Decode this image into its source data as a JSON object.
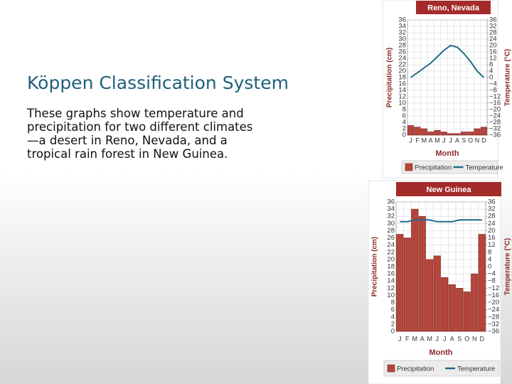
{
  "slide": {
    "title": "Köppen Classification System",
    "body": "These graphs show temperature and precipitation for two different climates—a desert in Reno, Nevada, and a tropical rain forest in New Guinea."
  },
  "chart_data": [
    {
      "type": "bar",
      "title": "Reno, Nevada",
      "x_label": "Month",
      "y_label": "Precipitation (cm)",
      "y2_label": "Temperature (°C)",
      "categories": [
        "J",
        "F",
        "M",
        "A",
        "M",
        "J",
        "J",
        "A",
        "S",
        "O",
        "N",
        "D"
      ],
      "series": [
        {
          "name": "Precipitation",
          "color": "#b5443a",
          "values": [
            3,
            2.5,
            2,
            1,
            1.5,
            1,
            0.5,
            0.5,
            1,
            1,
            2,
            2.5
          ]
        },
        {
          "name": "Temperature",
          "color": "#1f6b8a",
          "axis": "y2",
          "values": [
            0,
            3,
            6,
            9,
            13,
            17,
            20,
            19,
            15,
            10,
            4,
            0
          ]
        }
      ],
      "ylim": [
        0,
        36
      ],
      "yticks": [
        0,
        2,
        4,
        6,
        8,
        10,
        12,
        14,
        16,
        18,
        20,
        22,
        24,
        26,
        28,
        30,
        32,
        34,
        36
      ],
      "y2lim": [
        -36,
        36
      ],
      "y2ticks": [
        {
          "value": -36,
          "label": "−36"
        },
        {
          "value": -32,
          "label": "−32"
        },
        {
          "value": -28,
          "label": "−28"
        },
        {
          "value": -24,
          "label": "−24"
        },
        {
          "value": -20,
          "label": "−20"
        },
        {
          "value": -16,
          "label": "−16"
        },
        {
          "value": -12,
          "label": "−12"
        },
        {
          "value": -8,
          "label": "−8"
        },
        {
          "value": -4,
          "label": "−4"
        },
        0,
        4,
        8,
        12,
        16,
        20,
        24,
        28,
        32,
        36
      ],
      "grid": true,
      "legend": "bottom"
    },
    {
      "type": "bar",
      "title": "New Guinea",
      "x_label": "Month",
      "y_label": "Precipitation (cm)",
      "y2_label": "Temperature (°C)",
      "categories": [
        "J",
        "F",
        "M",
        "A",
        "M",
        "J",
        "J",
        "A",
        "S",
        "O",
        "N",
        "D"
      ],
      "series": [
        {
          "name": "Precipitation",
          "color": "#b5443a",
          "values": [
            27,
            26,
            34,
            32,
            20,
            21,
            15,
            13,
            12,
            11,
            16,
            27
          ]
        },
        {
          "name": "Temperature",
          "color": "#1f6b8a",
          "axis": "y2",
          "values": [
            25,
            25,
            26,
            26,
            26,
            25,
            25,
            25,
            26,
            26,
            26,
            26
          ]
        }
      ],
      "ylim": [
        0,
        36
      ],
      "yticks": [
        0,
        2,
        4,
        6,
        8,
        10,
        12,
        14,
        16,
        18,
        20,
        22,
        24,
        26,
        28,
        30,
        32,
        34,
        36
      ],
      "y2lim": [
        -36,
        36
      ],
      "y2ticks": [
        {
          "value": -36,
          "label": "−36"
        },
        {
          "value": -32,
          "label": "−32"
        },
        {
          "value": -28,
          "label": "−28"
        },
        {
          "value": -24,
          "label": "−24"
        },
        {
          "value": -20,
          "label": "−20"
        },
        {
          "value": -16,
          "label": "−16"
        },
        {
          "value": -12,
          "label": "−12"
        },
        {
          "value": -8,
          "label": "−8"
        },
        {
          "value": -4,
          "label": "−4"
        },
        0,
        4,
        8,
        12,
        16,
        20,
        24,
        28,
        32,
        36
      ],
      "grid": true,
      "legend": "bottom"
    }
  ]
}
